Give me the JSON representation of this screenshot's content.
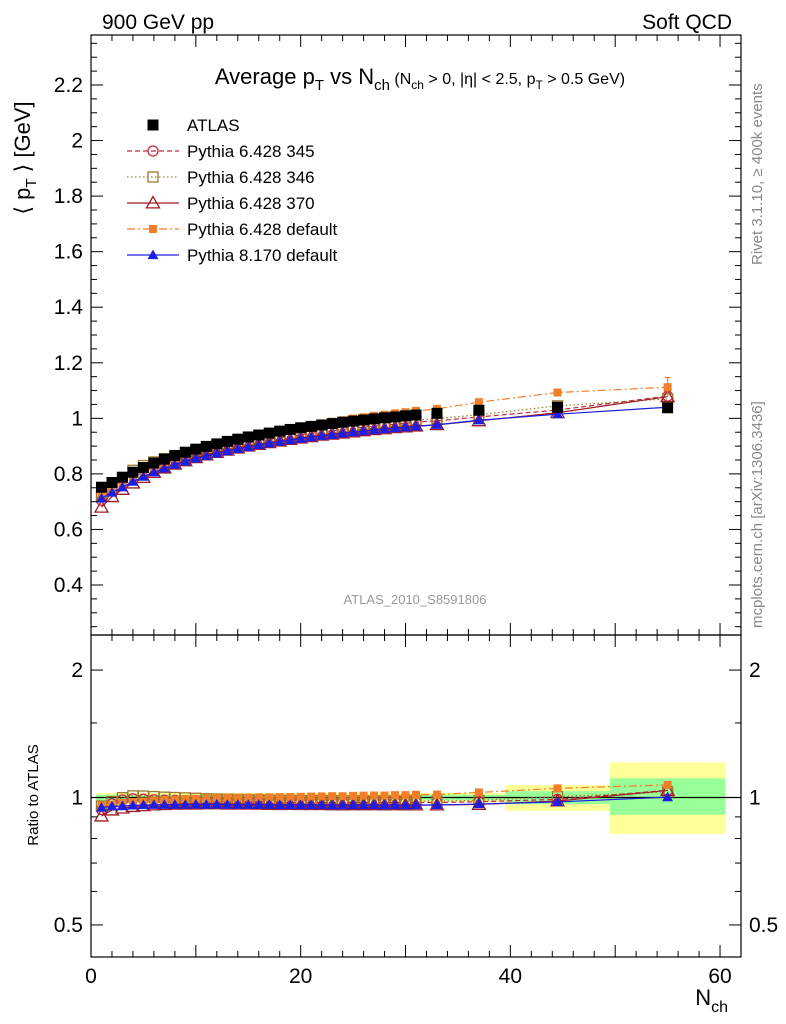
{
  "header": {
    "left": "900 GeV pp",
    "right": "Soft QCD"
  },
  "side_text": {
    "rivet": "Rivet 3.1.10, ≥ 400k events",
    "mcplots": "mcplots.cern.ch [arXiv:1306.3436]"
  },
  "watermark": "ATLAS_2010_S8591806",
  "chart_data": [
    {
      "type": "scatter",
      "title": "Average p_T vs N_ch (N_ch > 0, |η| < 2.5, p_T > 0.5 GeV)",
      "title_parts": {
        "main": "Average p",
        "main_sub": "T",
        "vs": " vs N",
        "vs_sub": "ch",
        "cond1": " (N",
        "cond1_sub": "ch",
        "cond2": " > 0, |η| < 2.5, p",
        "cond2_sub": "T",
        "cond3": " > 0.5 GeV)"
      },
      "ylabel": "⟨ p_T ⟩ [GeV]",
      "ylabel_parts": {
        "open": "⟨ p",
        "sub": "T",
        "close": " ⟩ [GeV]"
      },
      "xlim": [
        0,
        62
      ],
      "ylim": [
        0.22,
        2.38
      ],
      "yticks": [
        0.4,
        0.6,
        0.8,
        1,
        1.2,
        1.4,
        1.6,
        1.8,
        2,
        2.2
      ],
      "ytick_labels": [
        "0.4",
        "0.6",
        "0.8",
        "1",
        "1.2",
        "1.4",
        "1.6",
        "1.8",
        "2",
        "2.2"
      ],
      "x": [
        1,
        2,
        3,
        4,
        5,
        6,
        7,
        8,
        9,
        10,
        11,
        12,
        13,
        14,
        15,
        16,
        17,
        18,
        19,
        20,
        21,
        22,
        23,
        24,
        25,
        26,
        27,
        28,
        29,
        30,
        31,
        33,
        37,
        44.5,
        55
      ],
      "series": [
        {
          "name": "ATLAS",
          "color": "#000000",
          "marker": "square-filled",
          "line": "none",
          "values": [
            0.752,
            0.769,
            0.788,
            0.806,
            0.823,
            0.839,
            0.853,
            0.866,
            0.878,
            0.889,
            0.899,
            0.908,
            0.917,
            0.925,
            0.933,
            0.94,
            0.947,
            0.954,
            0.96,
            0.966,
            0.971,
            0.976,
            0.981,
            0.986,
            0.99,
            0.994,
            0.998,
            1.002,
            1.005,
            1.009,
            1.012,
            1.018,
            1.029,
            1.04,
            1.038
          ]
        },
        {
          "name": "Pythia 6.428 345",
          "color": "#c8283c",
          "marker": "circle-open",
          "line": "dashed",
          "values": [
            0.705,
            0.743,
            0.778,
            0.8,
            0.816,
            0.829,
            0.841,
            0.853,
            0.863,
            0.872,
            0.881,
            0.889,
            0.897,
            0.904,
            0.911,
            0.918,
            0.924,
            0.93,
            0.935,
            0.941,
            0.946,
            0.951,
            0.955,
            0.96,
            0.964,
            0.968,
            0.972,
            0.975,
            0.979,
            0.982,
            0.986,
            0.991,
            1.005,
            1.03,
            1.08
          ]
        },
        {
          "name": "Pythia 6.428 346",
          "color": "#9b7a2e",
          "marker": "square-open",
          "line": "dotted",
          "values": [
            0.718,
            0.752,
            0.787,
            0.813,
            0.83,
            0.843,
            0.855,
            0.866,
            0.876,
            0.885,
            0.893,
            0.901,
            0.909,
            0.916,
            0.922,
            0.928,
            0.934,
            0.94,
            0.945,
            0.95,
            0.955,
            0.96,
            0.964,
            0.968,
            0.972,
            0.976,
            0.98,
            0.983,
            0.987,
            0.99,
            0.993,
            0.999,
            1.013,
            1.045,
            1.07
          ]
        },
        {
          "name": "Pythia 6.428 370",
          "color": "#a01c28",
          "marker": "triangle-open",
          "line": "solid",
          "values": [
            0.68,
            0.718,
            0.744,
            0.767,
            0.787,
            0.805,
            0.821,
            0.835,
            0.847,
            0.858,
            0.868,
            0.877,
            0.885,
            0.893,
            0.9,
            0.906,
            0.912,
            0.918,
            0.924,
            0.929,
            0.934,
            0.939,
            0.943,
            0.947,
            0.951,
            0.955,
            0.959,
            0.962,
            0.966,
            0.969,
            0.972,
            0.977,
            0.991,
            1.02,
            1.078
          ]
        },
        {
          "name": "Pythia 6.428 default",
          "color": "#f07e2a",
          "marker": "square-filled-small",
          "line": "dashdot",
          "values": [
            0.72,
            0.74,
            0.765,
            0.786,
            0.806,
            0.824,
            0.841,
            0.856,
            0.87,
            0.882,
            0.894,
            0.905,
            0.915,
            0.924,
            0.933,
            0.941,
            0.948,
            0.956,
            0.963,
            0.97,
            0.976,
            0.982,
            0.988,
            0.993,
            0.999,
            1.004,
            1.009,
            1.013,
            1.018,
            1.022,
            1.027,
            1.034,
            1.058,
            1.093,
            1.112
          ]
        },
        {
          "name": "Pythia 8.170 default",
          "color": "#1e1ee0",
          "marker": "triangle-filled",
          "line": "solid",
          "values": [
            0.712,
            0.733,
            0.752,
            0.772,
            0.79,
            0.806,
            0.82,
            0.833,
            0.845,
            0.856,
            0.865,
            0.874,
            0.882,
            0.89,
            0.897,
            0.904,
            0.91,
            0.916,
            0.922,
            0.927,
            0.932,
            0.937,
            0.941,
            0.946,
            0.95,
            0.954,
            0.958,
            0.961,
            0.965,
            0.968,
            0.971,
            0.977,
            0.993,
            1.015,
            1.04
          ]
        }
      ],
      "legend_placement": "top-left"
    },
    {
      "type": "scatter",
      "ylabel": "Ratio to ATLAS",
      "xlabel": "N_ch",
      "xlabel_parts": {
        "main": "N",
        "sub": "ch"
      },
      "xlim": [
        0,
        62
      ],
      "ylim": [
        0.42,
        2.42
      ],
      "log_y": true,
      "yticks": [
        0.5,
        1,
        2
      ],
      "ytick_labels": [
        "0.5",
        "1",
        "2"
      ],
      "xticks": [
        0,
        20,
        40,
        60
      ],
      "xtick_labels": [
        "0",
        "20",
        "40",
        "60"
      ],
      "bands": [
        {
          "x": [
            0.5,
            39.5
          ],
          "yellow": [
            0.975,
            1.025
          ],
          "green": [
            0.985,
            1.015
          ]
        },
        {
          "x": [
            39.5,
            49.5
          ],
          "yellow": [
            0.93,
            1.07
          ],
          "green": [
            0.965,
            1.035
          ]
        },
        {
          "x": [
            49.5,
            60.5
          ],
          "yellow": [
            0.82,
            1.21
          ],
          "green": [
            0.91,
            1.11
          ]
        }
      ],
      "band_colors": {
        "yellow": "#ffff99",
        "green": "#99ff99"
      },
      "series": [
        {
          "name": "Pythia 6.428 345",
          "values": [
            0.937,
            0.966,
            0.987,
            0.993,
            0.991,
            0.988,
            0.986,
            0.985,
            0.983,
            0.981,
            0.98,
            0.979,
            0.978,
            0.977,
            0.976,
            0.977,
            0.976,
            0.975,
            0.974,
            0.974,
            0.974,
            0.974,
            0.973,
            0.974,
            0.974,
            0.974,
            0.974,
            0.973,
            0.974,
            0.973,
            0.974,
            0.973,
            0.977,
            0.99,
            1.04
          ]
        },
        {
          "name": "Pythia 6.428 346",
          "values": [
            0.955,
            0.978,
            0.999,
            1.009,
            1.008,
            1.005,
            1.002,
            1.0,
            0.998,
            0.996,
            0.993,
            0.992,
            0.991,
            0.99,
            0.988,
            0.987,
            0.986,
            0.985,
            0.984,
            0.983,
            0.984,
            0.984,
            0.983,
            0.982,
            0.982,
            0.982,
            0.982,
            0.981,
            0.982,
            0.981,
            0.981,
            0.981,
            0.984,
            1.005,
            1.031
          ]
        },
        {
          "name": "Pythia 6.428 370",
          "values": [
            0.904,
            0.934,
            0.944,
            0.952,
            0.956,
            0.96,
            0.962,
            0.964,
            0.965,
            0.965,
            0.966,
            0.966,
            0.965,
            0.965,
            0.965,
            0.964,
            0.963,
            0.962,
            0.963,
            0.962,
            0.962,
            0.962,
            0.961,
            0.96,
            0.961,
            0.961,
            0.961,
            0.96,
            0.961,
            0.96,
            0.96,
            0.96,
            0.963,
            0.981,
            1.039
          ]
        },
        {
          "name": "Pythia 6.428 default",
          "values": [
            0.957,
            0.962,
            0.971,
            0.975,
            0.979,
            0.982,
            0.986,
            0.988,
            0.991,
            0.992,
            0.994,
            0.997,
            0.998,
            0.999,
            1.0,
            1.001,
            1.001,
            1.002,
            1.003,
            1.004,
            1.005,
            1.006,
            1.007,
            1.007,
            1.009,
            1.01,
            1.011,
            1.011,
            1.013,
            1.013,
            1.015,
            1.016,
            1.028,
            1.051,
            1.071
          ]
        },
        {
          "name": "Pythia 8.170 default",
          "values": [
            0.947,
            0.953,
            0.954,
            0.958,
            0.96,
            0.961,
            0.961,
            0.962,
            0.962,
            0.963,
            0.962,
            0.963,
            0.962,
            0.962,
            0.961,
            0.962,
            0.961,
            0.96,
            0.96,
            0.96,
            0.96,
            0.96,
            0.959,
            0.959,
            0.96,
            0.96,
            0.96,
            0.959,
            0.96,
            0.959,
            0.96,
            0.96,
            0.965,
            0.976,
            1.002
          ]
        }
      ]
    }
  ]
}
